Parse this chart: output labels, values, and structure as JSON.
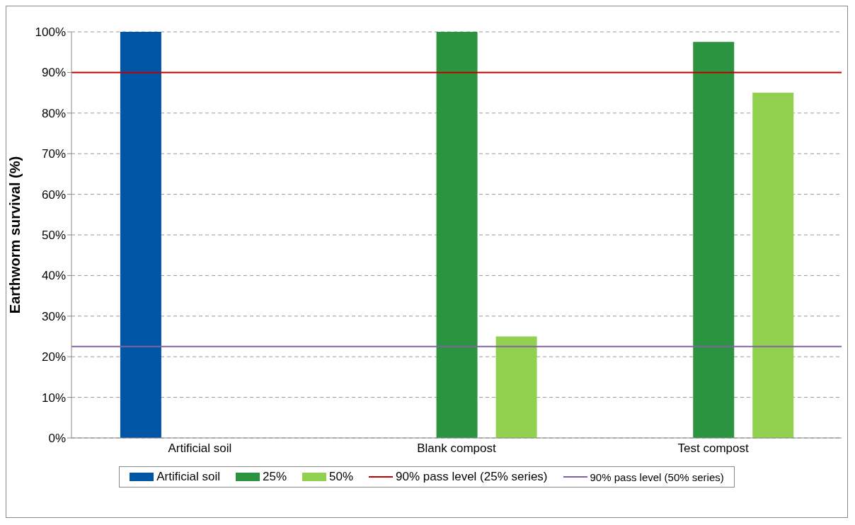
{
  "chart_data": {
    "type": "bar",
    "ylabel": "Earthworm survival (%)",
    "categories": [
      "Artificial soil",
      "Blank compost",
      "Test compost"
    ],
    "series": [
      {
        "name": "Artificial soil",
        "color": "#0055a5",
        "values": [
          100,
          null,
          null
        ]
      },
      {
        "name": "25%",
        "color": "#2a9440",
        "values": [
          null,
          100,
          97.5
        ]
      },
      {
        "name": "50%",
        "color": "#92d050",
        "values": [
          null,
          25,
          85
        ]
      }
    ],
    "ylim": [
      0,
      100
    ],
    "yticks": [
      {
        "value": 0,
        "label": "0%"
      },
      {
        "value": 10,
        "label": "10%"
      },
      {
        "value": 20,
        "label": "20%"
      },
      {
        "value": 30,
        "label": "30%"
      },
      {
        "value": 40,
        "label": "40%"
      },
      {
        "value": 50,
        "label": "50%"
      },
      {
        "value": 60,
        "label": "60%"
      },
      {
        "value": 70,
        "label": "70%"
      },
      {
        "value": 80,
        "label": "80%"
      },
      {
        "value": 90,
        "label": "90%"
      },
      {
        "value": 100,
        "label": "100%"
      }
    ],
    "ref_lines": [
      {
        "axis": "y",
        "value": 90,
        "label": "90% pass level (25% series)",
        "color": "#c00000"
      },
      {
        "axis": "y",
        "value": 22.5,
        "label": "90% pass level (50% series)",
        "color": "#8064a2"
      }
    ],
    "grid": "y",
    "legend": "bottom"
  }
}
